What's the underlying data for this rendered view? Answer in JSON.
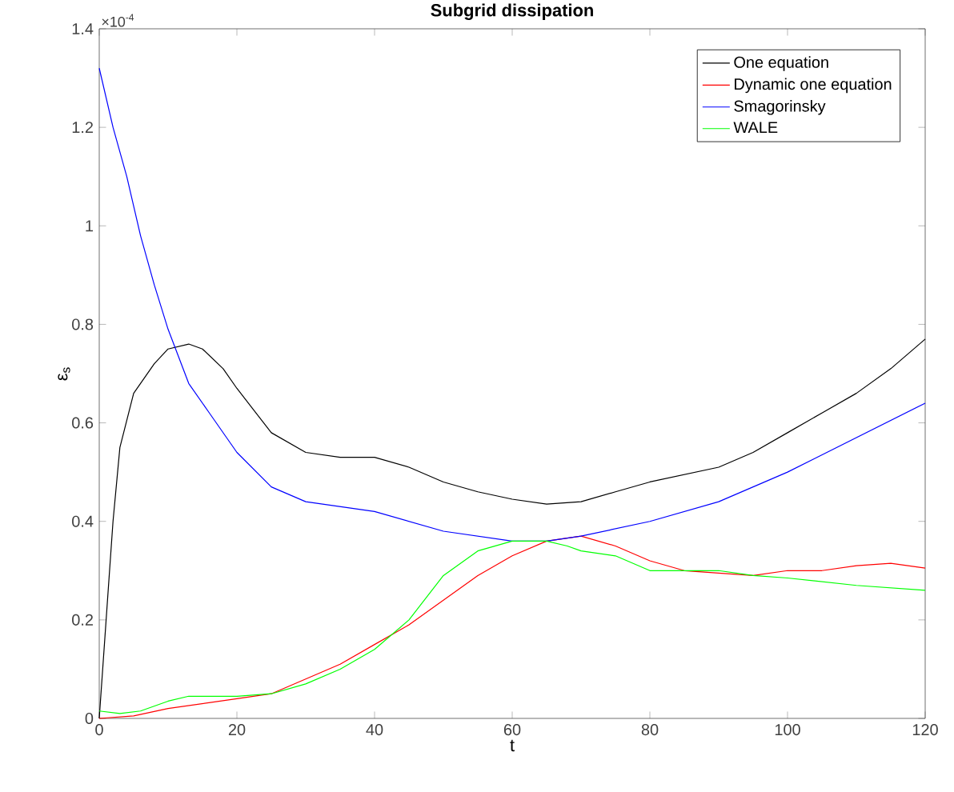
{
  "chart_data": {
    "type": "line",
    "title": "Subgrid dissipation",
    "xlabel": "t",
    "ylabel": "ε$_{s}$",
    "annotations": [
      "×10$^{-4}$"
    ],
    "xlim": [
      0,
      120
    ],
    "ylim": [
      0,
      1.4
    ],
    "xticks": [
      0,
      20,
      40,
      60,
      80,
      100,
      120
    ],
    "yticks": [
      0,
      0.2,
      0.4,
      0.6,
      0.8,
      1,
      1.2,
      1.4
    ],
    "legend": "top right",
    "marker": "none",
    "line_style": "solid",
    "grid": false,
    "series": [
      {
        "name": "One equation",
        "color": "#000000",
        "x": [
          0,
          1,
          2,
          3,
          5,
          8,
          10,
          13,
          15,
          18,
          20,
          25,
          30,
          35,
          40,
          45,
          50,
          55,
          60,
          65,
          70,
          75,
          80,
          85,
          90,
          95,
          100,
          105,
          110,
          115,
          120
        ],
        "values": [
          0,
          0.2,
          0.4,
          0.55,
          0.66,
          0.72,
          0.75,
          0.76,
          0.75,
          0.71,
          0.67,
          0.58,
          0.54,
          0.53,
          0.53,
          0.51,
          0.48,
          0.46,
          0.445,
          0.435,
          0.44,
          0.46,
          0.48,
          0.495,
          0.51,
          0.54,
          0.58,
          0.62,
          0.66,
          0.71,
          0.77
        ]
      },
      {
        "name": "Dynamic one equation",
        "color": "#ff0000",
        "x": [
          0,
          5,
          10,
          15,
          20,
          25,
          30,
          35,
          40,
          45,
          50,
          55,
          60,
          65,
          70,
          75,
          80,
          85,
          90,
          95,
          100,
          105,
          110,
          115,
          120
        ],
        "values": [
          0,
          0.005,
          0.02,
          0.03,
          0.04,
          0.05,
          0.08,
          0.11,
          0.15,
          0.19,
          0.24,
          0.29,
          0.33,
          0.36,
          0.37,
          0.35,
          0.32,
          0.3,
          0.295,
          0.29,
          0.3,
          0.3,
          0.31,
          0.315,
          0.305
        ]
      },
      {
        "name": "Smagorinsky",
        "color": "#0000ff",
        "x": [
          0,
          2,
          4,
          6,
          8,
          10,
          13,
          16,
          20,
          25,
          30,
          40,
          50,
          60,
          65,
          70,
          80,
          90,
          100,
          110,
          120
        ],
        "values": [
          1.32,
          1.2,
          1.1,
          0.98,
          0.88,
          0.79,
          0.68,
          0.62,
          0.54,
          0.47,
          0.44,
          0.42,
          0.38,
          0.36,
          0.36,
          0.37,
          0.4,
          0.44,
          0.5,
          0.57,
          0.64
        ]
      },
      {
        "name": "WALE",
        "color": "#00ff00",
        "x": [
          0,
          3,
          6,
          10,
          13,
          20,
          25,
          30,
          35,
          40,
          45,
          50,
          55,
          60,
          65,
          68,
          70,
          75,
          80,
          85,
          90,
          95,
          100,
          110,
          120
        ],
        "values": [
          0.015,
          0.01,
          0.015,
          0.035,
          0.045,
          0.045,
          0.05,
          0.07,
          0.1,
          0.14,
          0.2,
          0.29,
          0.34,
          0.36,
          0.36,
          0.35,
          0.34,
          0.33,
          0.3,
          0.3,
          0.3,
          0.29,
          0.285,
          0.27,
          0.26
        ]
      }
    ]
  }
}
